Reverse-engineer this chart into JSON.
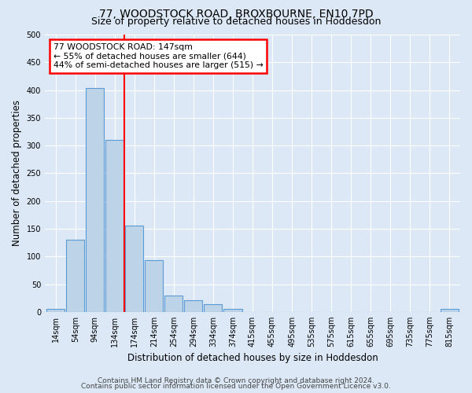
{
  "title": "77, WOODSTOCK ROAD, BROXBOURNE, EN10 7PD",
  "subtitle": "Size of property relative to detached houses in Hoddesdon",
  "bar_values": [
    5,
    130,
    403,
    310,
    156,
    93,
    29,
    21,
    14,
    5,
    0,
    0,
    0,
    0,
    0,
    0,
    0,
    0,
    0,
    0,
    5
  ],
  "bar_labels": [
    "14sqm",
    "54sqm",
    "94sqm",
    "134sqm",
    "174sqm",
    "214sqm",
    "254sqm",
    "294sqm",
    "334sqm",
    "374sqm",
    "415sqm",
    "455sqm",
    "495sqm",
    "535sqm",
    "575sqm",
    "615sqm",
    "655sqm",
    "695sqm",
    "735sqm",
    "775sqm",
    "815sqm"
  ],
  "bar_color": "#bdd4e8",
  "bar_edge_color": "#5b9bd5",
  "ylabel": "Number of detached properties",
  "xlabel": "Distribution of detached houses by size in Hoddesdon",
  "ylim": [
    0,
    500
  ],
  "yticks": [
    0,
    50,
    100,
    150,
    200,
    250,
    300,
    350,
    400,
    450,
    500
  ],
  "red_line_x": 3.5,
  "annotation_line1": "77 WOODSTOCK ROAD: 147sqm",
  "annotation_line2": "← 55% of detached houses are smaller (644)",
  "annotation_line3": "44% of semi-detached houses are larger (515) →",
  "footer_line1": "Contains HM Land Registry data © Crown copyright and database right 2024.",
  "footer_line2": "Contains public sector information licensed under the Open Government Licence v3.0.",
  "background_color": "#dce8f5",
  "plot_background_color": "#dce8f5",
  "grid_color": "#ffffff",
  "title_fontsize": 10,
  "subtitle_fontsize": 9,
  "axis_label_fontsize": 8.5,
  "tick_fontsize": 7,
  "footer_fontsize": 6.5
}
